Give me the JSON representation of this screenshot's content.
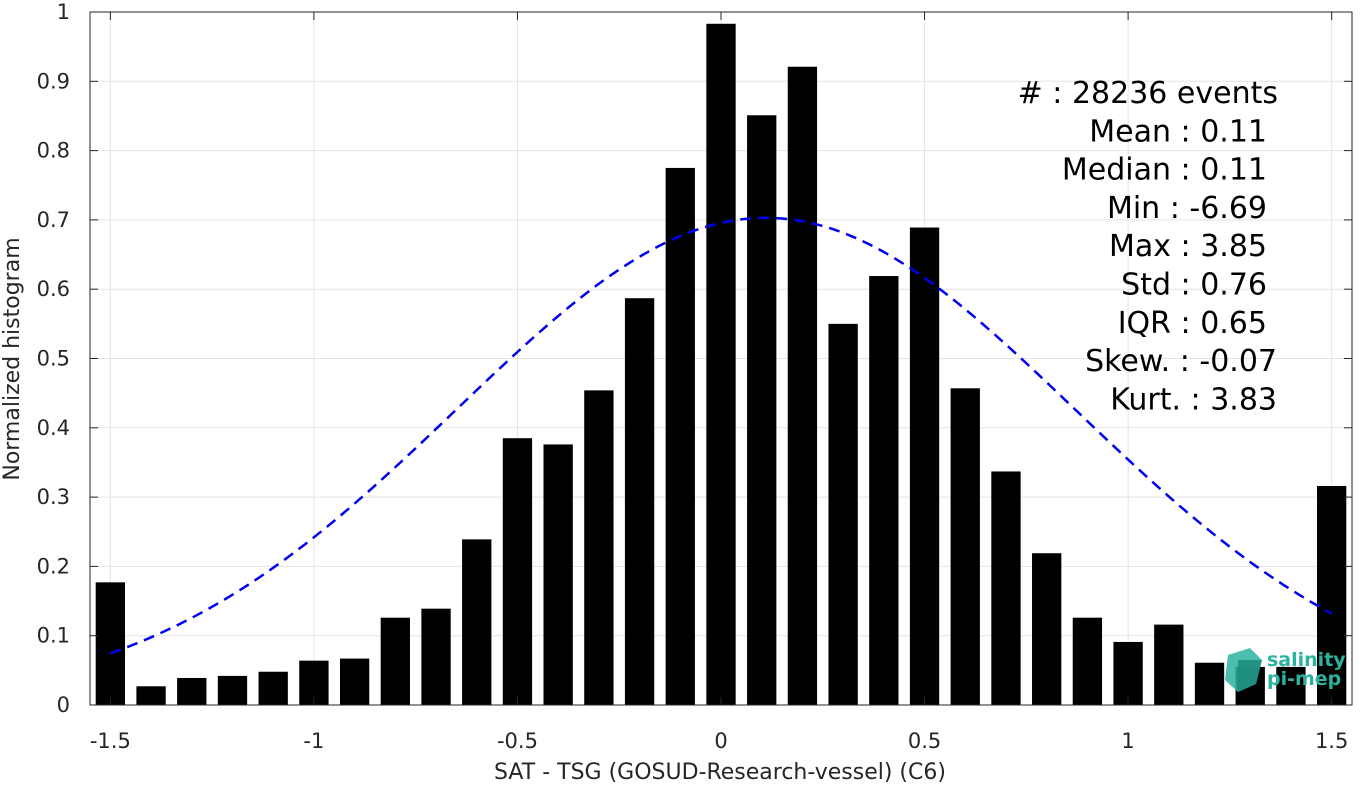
{
  "chart_data": {
    "type": "bar",
    "xlabel": "SAT - TSG (GOSUD-Research-vessel) (C6)",
    "ylabel": "Normalized histogram",
    "xlim": [
      -1.55,
      1.55
    ],
    "ylim": [
      0,
      1
    ],
    "xticks": [
      -1.5,
      -1,
      -0.5,
      0,
      0.5,
      1,
      1.5
    ],
    "xtick_labels": [
      "-1.5",
      "-1",
      "-0.5",
      "0",
      "0.5",
      "1",
      "1.5"
    ],
    "yticks": [
      0,
      0.1,
      0.2,
      0.3,
      0.4,
      0.5,
      0.6,
      0.7,
      0.8,
      0.9,
      1
    ],
    "ytick_labels": [
      "0",
      "0.1",
      "0.2",
      "0.3",
      "0.4",
      "0.5",
      "0.6",
      "0.7",
      "0.8",
      "0.9",
      "1"
    ],
    "grid": true,
    "bar_color": "#000000",
    "fit_color": "#0000ee",
    "x": [
      -1.5,
      -1.4,
      -1.3,
      -1.2,
      -1.1,
      -1.0,
      -0.9,
      -0.8,
      -0.7,
      -0.6,
      -0.5,
      -0.4,
      -0.3,
      -0.2,
      -0.1,
      0.0,
      0.1,
      0.2,
      0.3,
      0.4,
      0.5,
      0.6,
      0.7,
      0.8,
      0.9,
      1.0,
      1.1,
      1.2,
      1.3,
      1.4,
      1.5
    ],
    "values": [
      0.177,
      0.027,
      0.039,
      0.042,
      0.048,
      0.064,
      0.067,
      0.126,
      0.139,
      0.239,
      0.385,
      0.376,
      0.454,
      0.587,
      0.775,
      0.983,
      0.851,
      0.921,
      0.55,
      0.619,
      0.689,
      0.457,
      0.337,
      0.219,
      0.126,
      0.091,
      0.116,
      0.061,
      0.055,
      0.055,
      0.316
    ],
    "fit": {
      "type": "normal",
      "mean": 0.11,
      "std": 0.76,
      "peak": 0.703,
      "x_range": [
        -1.5,
        1.5
      ]
    },
    "stats": [
      {
        "label": "#  : 28236 events"
      },
      {
        "label": "Mean : 0.11"
      },
      {
        "label": "Median : 0.11"
      },
      {
        "label": "Min : -6.69"
      },
      {
        "label": "Max : 3.85"
      },
      {
        "label": "Std : 0.76"
      },
      {
        "label": "IQR : 0.65"
      },
      {
        "label": "Skew. : -0.07"
      },
      {
        "label": "Kurt. : 3.83"
      }
    ]
  },
  "logo": {
    "line1": "salinity",
    "line2": "pi-mep",
    "color": "#2bb3a0"
  }
}
